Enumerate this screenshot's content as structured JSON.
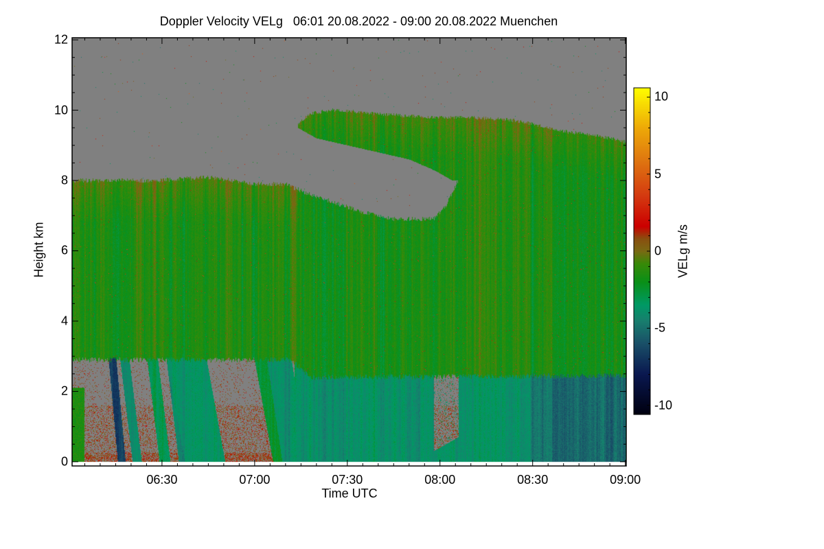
{
  "chart_data": {
    "type": "heatmap",
    "title": "Doppler Velocity VELg   06:01 20.08.2022 - 09:00 20.08.2022 Muenchen",
    "xlabel": "Time UTC",
    "ylabel": "Height km",
    "colorbar_label": "VELg m/s",
    "x_range_minutes_after_0600": [
      1,
      180
    ],
    "x_ticks": [
      {
        "min": 30,
        "label": "06:30"
      },
      {
        "min": 60,
        "label": "07:00"
      },
      {
        "min": 90,
        "label": "07:30"
      },
      {
        "min": 120,
        "label": "08:00"
      },
      {
        "min": 150,
        "label": "08:30"
      },
      {
        "min": 180,
        "label": "09:00"
      }
    ],
    "ylim": [
      -0.12,
      12.06
    ],
    "y_ticks": [
      {
        "v": 0,
        "label": "0"
      },
      {
        "v": 2,
        "label": "2"
      },
      {
        "v": 4,
        "label": "4"
      },
      {
        "v": 6,
        "label": "6"
      },
      {
        "v": 8,
        "label": "8"
      },
      {
        "v": 10,
        "label": "10"
      },
      {
        "v": 12,
        "label": "12"
      }
    ],
    "colorbar_range": [
      -10.6,
      10.6
    ],
    "colorbar_ticks": [
      {
        "v": 10,
        "label": "10"
      },
      {
        "v": 5,
        "label": "5"
      },
      {
        "v": 0,
        "label": "0"
      },
      {
        "v": -5,
        "label": "-5"
      },
      {
        "v": -10,
        "label": "-10"
      }
    ],
    "colormap": [
      {
        "v": -10.6,
        "c": "#000010"
      },
      {
        "v": -8,
        "c": "#0a1850"
      },
      {
        "v": -6,
        "c": "#1a5068"
      },
      {
        "v": -4.5,
        "c": "#18806e"
      },
      {
        "v": -3.5,
        "c": "#009a66"
      },
      {
        "v": -2,
        "c": "#0a9018"
      },
      {
        "v": -0.8,
        "c": "#3a8a08"
      },
      {
        "v": 0,
        "c": "#7a6a14"
      },
      {
        "v": 0.8,
        "c": "#8a5010"
      },
      {
        "v": 1.6,
        "c": "#cc0000"
      },
      {
        "v": 3.5,
        "c": "#d43810"
      },
      {
        "v": 6,
        "c": "#e07a10"
      },
      {
        "v": 8,
        "c": "#eeaa08"
      },
      {
        "v": 10.6,
        "c": "#ffff00"
      }
    ],
    "no_signal_color": "#808080",
    "cloud_top_km": [
      [
        1,
        8.0
      ],
      [
        15,
        8.0
      ],
      [
        30,
        8.0
      ],
      [
        45,
        8.1
      ],
      [
        60,
        7.9
      ],
      [
        70,
        7.9
      ],
      [
        78,
        7.6
      ],
      [
        85,
        7.4
      ],
      [
        95,
        7.1
      ],
      [
        105,
        6.9
      ],
      [
        118,
        6.9
      ],
      [
        122,
        7.3
      ],
      [
        126,
        8.0
      ]
    ],
    "upper_cloud_top_km": [
      [
        74,
        9.6
      ],
      [
        78,
        9.9
      ],
      [
        85,
        10.0
      ],
      [
        100,
        9.9
      ],
      [
        115,
        9.8
      ],
      [
        130,
        9.8
      ],
      [
        145,
        9.7
      ],
      [
        160,
        9.4
      ],
      [
        170,
        9.3
      ],
      [
        180,
        9.1
      ]
    ],
    "upper_gap_top_km": [
      [
        74,
        9.5
      ],
      [
        80,
        9.2
      ],
      [
        95,
        8.9
      ],
      [
        110,
        8.6
      ],
      [
        118,
        8.3
      ],
      [
        124,
        8.0
      ],
      [
        126,
        8.0
      ]
    ],
    "lower_layer_top_km": [
      [
        1,
        2.9
      ],
      [
        72,
        2.9
      ],
      [
        78,
        2.4
      ],
      [
        180,
        2.45
      ]
    ],
    "fall_streaks": [
      {
        "t_top": 14,
        "width": 2.5,
        "slant": 3,
        "vel": -6.5
      },
      {
        "t_top": 18,
        "width": 3,
        "slant": 4,
        "vel": -4.2
      },
      {
        "t_top": 27,
        "width": 3.5,
        "slant": 4,
        "vel": -3.2
      },
      {
        "t_top": 33,
        "width": 3,
        "slant": 4,
        "vel": -4.2
      },
      {
        "t_top": 38,
        "width": 13,
        "slant": 6,
        "vel": -3.6
      },
      {
        "t_top": 62,
        "width": 4,
        "slant": 6,
        "vel": -2.5
      },
      {
        "t_top": 68,
        "width": 8,
        "slant": 5,
        "vel": -4.0
      }
    ],
    "lower_clear_patches": [
      {
        "t_start": 118,
        "t_end": 126,
        "top_km": 2.6
      }
    ],
    "lower_layer_mean_vel": [
      [
        75,
        -3.8
      ],
      [
        145,
        -3.8
      ],
      [
        155,
        -5.2
      ],
      [
        180,
        -5.0
      ]
    ],
    "cloud_mean_vel": -1.6
  }
}
